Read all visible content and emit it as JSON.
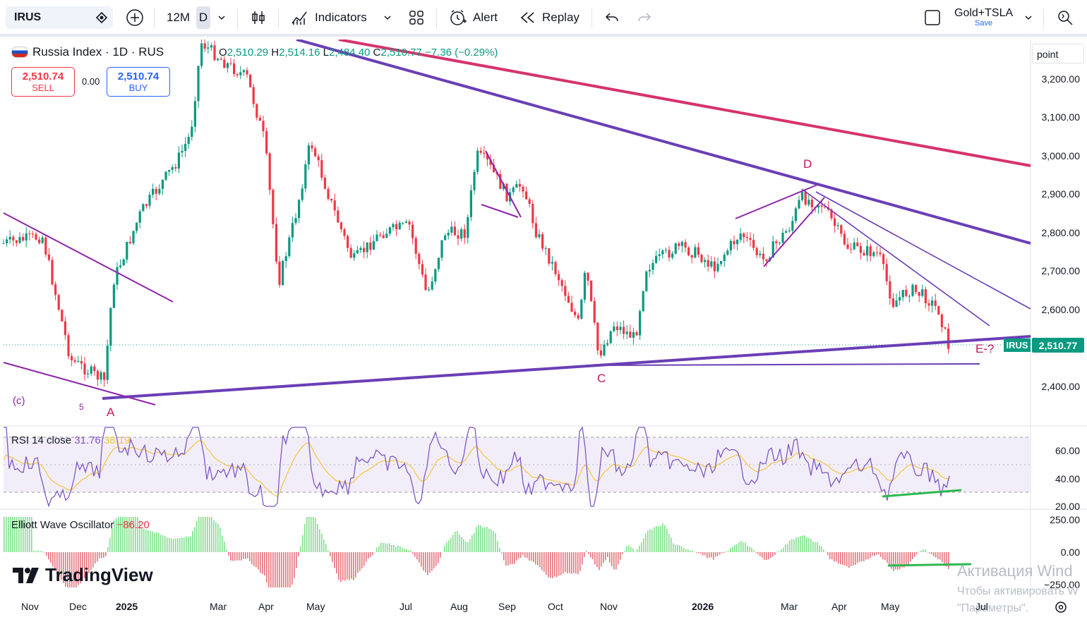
{
  "toolbar": {
    "symbol": "IRUS",
    "interval_range": "12M",
    "interval": "D",
    "indicators": "Indicators",
    "alert": "Alert",
    "replay": "Replay",
    "layout_name": "Gold+TSLA",
    "layout_status": "Save"
  },
  "legend": {
    "title": "Russia Index · 1D · RUS",
    "o_label": "O",
    "o": "2,510.29",
    "h_label": "H",
    "h": "2,514.16",
    "l_label": "L",
    "l": "2,484.40",
    "c_label": "C",
    "c": "2,510.77",
    "change": "−7.36 (−0.29%)"
  },
  "trade": {
    "sell_price": "2,510.74",
    "sell_label": "SELL",
    "spread": "0.00",
    "buy_price": "2,510.74",
    "buy_label": "BUY"
  },
  "price_axis": {
    "unit_button": "point",
    "labels": [
      "3,200.00",
      "3,100.00",
      "3,000.00",
      "2,900.00",
      "2,800.00",
      "2,700.00",
      "2,600.00",
      "2,400.00"
    ],
    "current_symbol": "IRUS",
    "current_price": "2,510.77"
  },
  "annotations": {
    "c_paren": "(c)",
    "five": "5",
    "A": "A",
    "C": "C",
    "D": "D",
    "E": "E-?"
  },
  "rsi": {
    "title": "RSI 14 close",
    "value": "31.76",
    "ma_value": "38.19",
    "labels": [
      "60.00",
      "40.00",
      "20.00"
    ]
  },
  "ewo": {
    "title": "Elliott Wave Oscillator",
    "value": "−86.20",
    "labels": [
      "250.00",
      "0.00",
      "−250.00"
    ]
  },
  "time_axis": [
    "Nov",
    "Dec",
    "2025",
    "Mar",
    "Apr",
    "May",
    "Jul",
    "Aug",
    "Sep",
    "Oct",
    "Nov",
    "2026",
    "Mar",
    "Apr",
    "May",
    "Jul"
  ],
  "brand": "TradingView",
  "watermark": {
    "line1": "Активация Wind",
    "line2": "Чтобы активировать W",
    "line3": "\"Параметры\"."
  },
  "colors": {
    "up": "#089981",
    "down": "#f23645",
    "trend": "#6a3fb5",
    "trend_red": "#d6336c",
    "rsi": "#7e57c2",
    "rsi_ma": "#f4c542",
    "green_line": "#2eb84f"
  }
}
